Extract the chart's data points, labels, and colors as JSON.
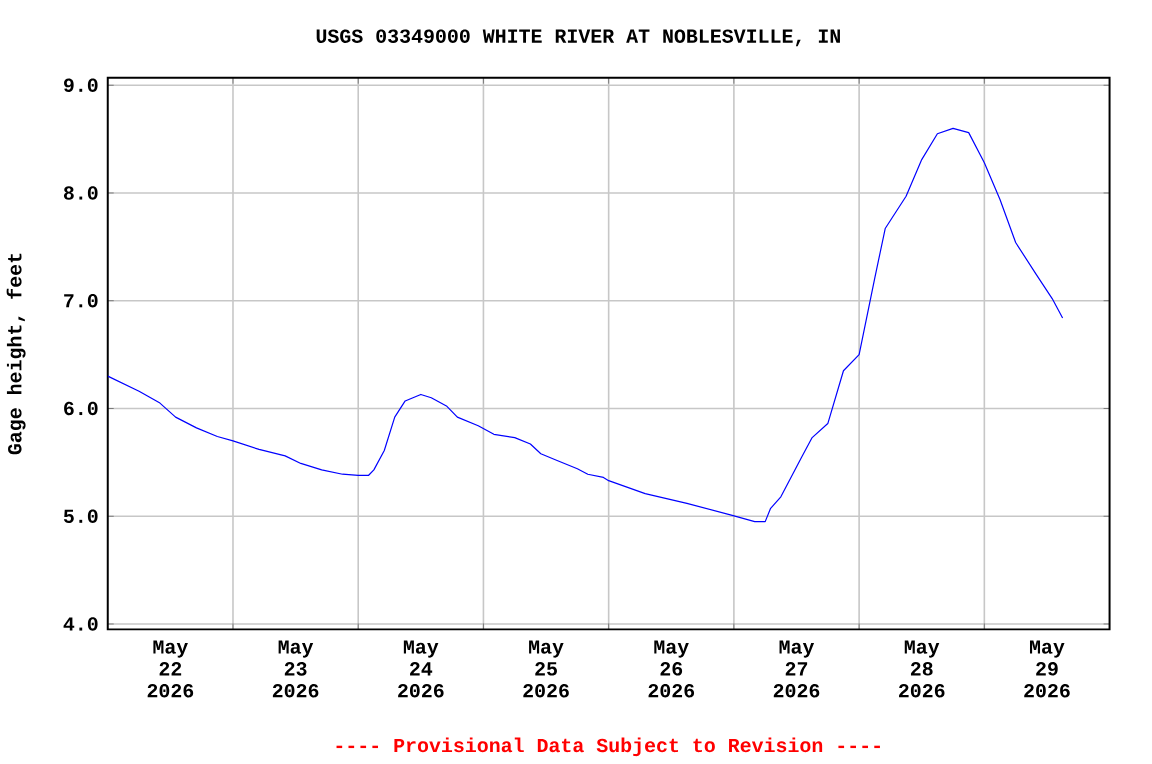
{
  "chart_data": {
    "type": "line",
    "title": "USGS 03349000 WHITE RIVER AT NOBLESVILLE, IN",
    "ylabel": "Gage height, feet",
    "annotations": [
      "---- Provisional Data Subject to Revision ----"
    ],
    "x": [
      "2026-05-22T00:00",
      "2026-05-22T06:00",
      "2026-05-22T10:00",
      "2026-05-22T13:00",
      "2026-05-22T17:00",
      "2026-05-22T21:00",
      "2026-05-23T00:00",
      "2026-05-23T05:00",
      "2026-05-23T10:00",
      "2026-05-23T13:00",
      "2026-05-23T17:00",
      "2026-05-23T21:00",
      "2026-05-24T00:00",
      "2026-05-24T02:00",
      "2026-05-24T03:00",
      "2026-05-24T05:00",
      "2026-05-24T07:00",
      "2026-05-24T09:00",
      "2026-05-24T12:00",
      "2026-05-24T14:00",
      "2026-05-24T17:00",
      "2026-05-24T19:00",
      "2026-05-24T23:00",
      "2026-05-25T02:00",
      "2026-05-25T06:00",
      "2026-05-25T09:00",
      "2026-05-25T11:00",
      "2026-05-25T14:00",
      "2026-05-25T18:00",
      "2026-05-25T20:00",
      "2026-05-25T23:00",
      "2026-05-26T00:00",
      "2026-05-26T07:00",
      "2026-05-26T15:00",
      "2026-05-26T23:30",
      "2026-05-27T04:00",
      "2026-05-27T06:00",
      "2026-05-27T07:00",
      "2026-05-27T09:00",
      "2026-05-27T13:00",
      "2026-05-27T15:00",
      "2026-05-27T18:00",
      "2026-05-27T21:00",
      "2026-05-28T00:00",
      "2026-05-28T03:00",
      "2026-05-28T05:00",
      "2026-05-28T09:00",
      "2026-05-28T12:00",
      "2026-05-28T15:00",
      "2026-05-28T18:00",
      "2026-05-28T21:00",
      "2026-05-29T00:00",
      "2026-05-29T03:00",
      "2026-05-29T06:00",
      "2026-05-29T10:00",
      "2026-05-29T13:00",
      "2026-05-29T15:00"
    ],
    "series": [
      {
        "color": "#0000ff",
        "values": [
          6.3,
          6.16,
          6.05,
          5.92,
          5.82,
          5.74,
          5.7,
          5.62,
          5.56,
          5.49,
          5.43,
          5.39,
          5.38,
          5.38,
          5.43,
          5.61,
          5.92,
          6.07,
          6.13,
          6.1,
          6.02,
          5.92,
          5.84,
          5.76,
          5.73,
          5.67,
          5.58,
          5.52,
          5.44,
          5.39,
          5.36,
          5.33,
          5.21,
          5.12,
          5.01,
          4.95,
          4.95,
          5.07,
          5.18,
          5.55,
          5.73,
          5.86,
          6.35,
          6.5,
          7.21,
          7.67,
          7.97,
          8.31,
          8.55,
          8.6,
          8.56,
          8.28,
          7.94,
          7.54,
          7.24,
          7.02,
          6.84
        ]
      }
    ],
    "xlim": [
      "2026-05-22T00:00",
      "2026-05-30T00:00"
    ],
    "xticks": [
      {
        "value": "2026-05-23T00:00",
        "label": null
      },
      {
        "value": "2026-05-24T00:00",
        "label": null
      },
      {
        "value": "2026-05-25T00:00",
        "label": null
      },
      {
        "value": "2026-05-26T00:00",
        "label": null
      },
      {
        "value": "2026-05-27T00:00",
        "label": null
      },
      {
        "value": "2026-05-28T00:00",
        "label": null
      },
      {
        "value": "2026-05-29T00:00",
        "label": null
      },
      {
        "value": "2026-05-22T12:00",
        "label": "May 22 2026"
      },
      {
        "value": "2026-05-23T12:00",
        "label": "May 23 2026"
      },
      {
        "value": "2026-05-24T12:00",
        "label": "May 24 2026"
      },
      {
        "value": "2026-05-25T12:00",
        "label": "May 25 2026"
      },
      {
        "value": "2026-05-26T12:00",
        "label": "May 26 2026"
      },
      {
        "value": "2026-05-27T12:00",
        "label": "May 27 2026"
      },
      {
        "value": "2026-05-28T12:00",
        "label": "May 28 2026"
      },
      {
        "value": "2026-05-29T12:00",
        "label": "May 29 2026"
      }
    ],
    "ylim": [
      3.95,
      9.07
    ],
    "yticks": [
      {
        "value": 4,
        "label": "4.0"
      },
      {
        "value": 5,
        "label": "5.0"
      },
      {
        "value": 6,
        "label": "6.0"
      },
      {
        "value": 7,
        "label": "7.0"
      },
      {
        "value": 8,
        "label": "8.0"
      },
      {
        "value": 9,
        "label": "9.0"
      }
    ],
    "grid": true,
    "marker": "none",
    "line_style": "solid"
  }
}
